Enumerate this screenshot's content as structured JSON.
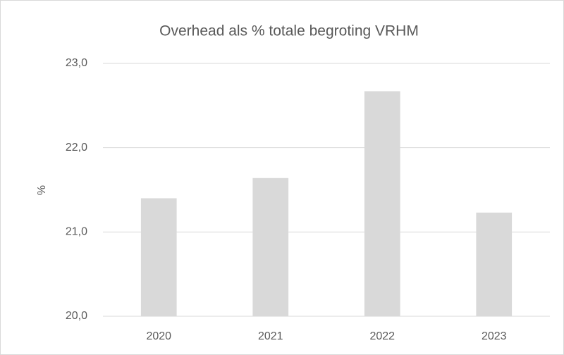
{
  "chart_data": {
    "type": "bar",
    "title": "Overhead als % totale begroting VRHM",
    "y_label": "%",
    "categories": [
      "2020",
      "2021",
      "2022",
      "2023"
    ],
    "values": [
      21.4,
      21.64,
      22.67,
      21.23
    ],
    "color": "#d9d9d9",
    "ylim": [
      20,
      23
    ],
    "yticks": [
      {
        "value": 20,
        "label": "20,0"
      },
      {
        "value": 21,
        "label": "21,0"
      },
      {
        "value": 22,
        "label": "22,0"
      },
      {
        "value": 23,
        "label": "23,0"
      }
    ],
    "grid": true
  }
}
